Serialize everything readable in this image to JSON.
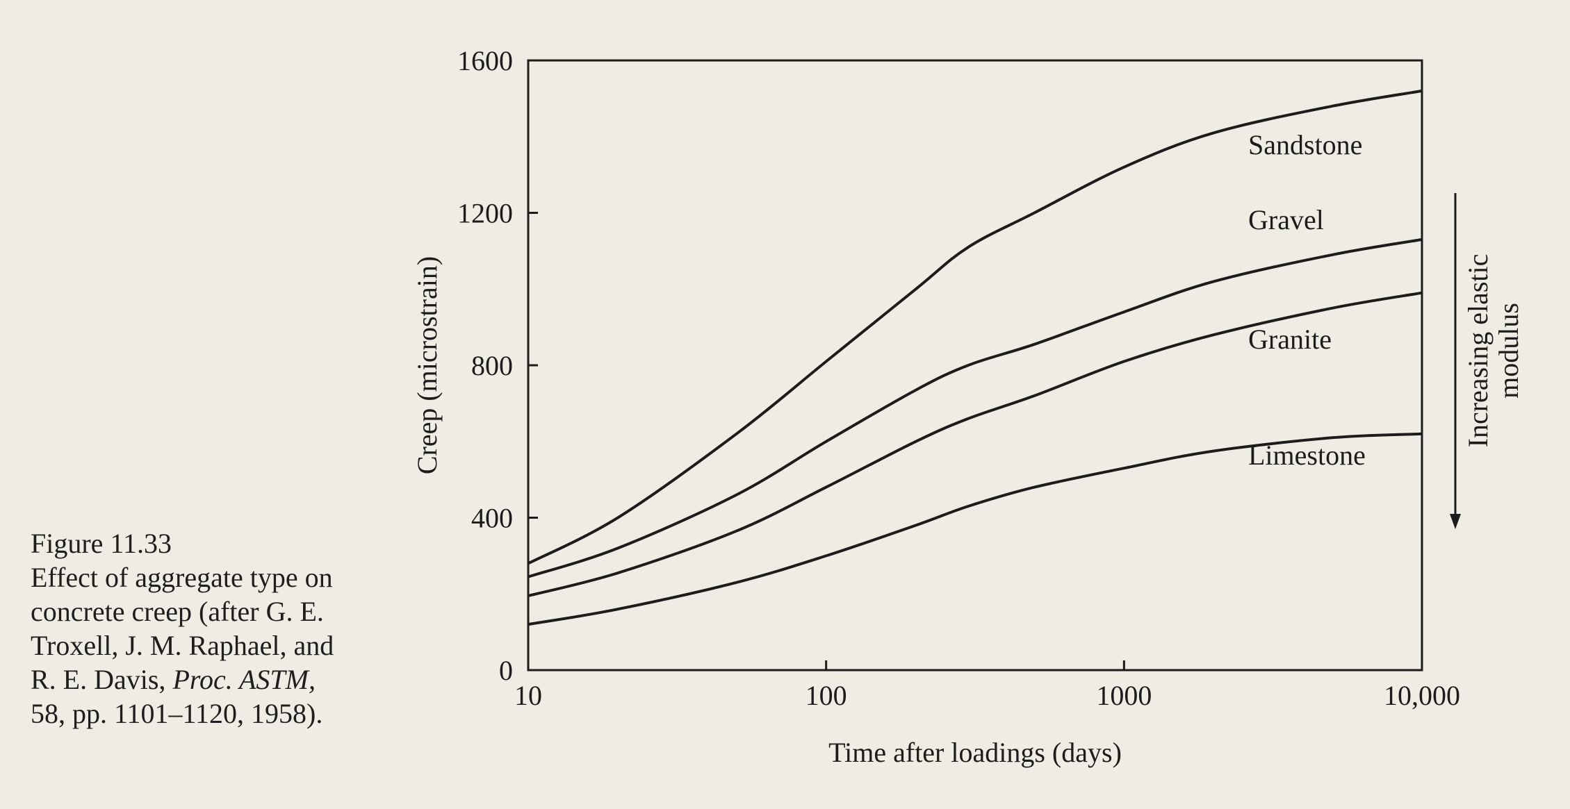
{
  "caption": {
    "line1": "Figure 11.33",
    "line2": "Effect of aggregate type on",
    "line3": "concrete creep (after G. E.",
    "line4": "Troxell, J. M. Raphael, and",
    "line5_pre": "R. E. Davis, ",
    "line5_italic": "Proc. ASTM,",
    "line6": "58, pp. 1101–1120, 1958)."
  },
  "annotation": {
    "line1": "Increasing elastic",
    "line2": "modulus"
  },
  "chart_data": {
    "type": "line",
    "title": "",
    "xlabel": "Time after loadings (days)",
    "ylabel": "Creep (microstrain)",
    "xscale": "log",
    "xlim": [
      10,
      10000
    ],
    "ylim": [
      0,
      1600
    ],
    "xticks": [
      10,
      100,
      1000,
      10000
    ],
    "xtick_labels": [
      "10",
      "100",
      "1000",
      "10,000"
    ],
    "yticks": [
      0,
      400,
      800,
      1200,
      1600
    ],
    "ytick_labels": [
      "0",
      "400",
      "800",
      "1200",
      "1600"
    ],
    "grid": false,
    "legend": "none",
    "x": [
      10,
      20,
      50,
      100,
      200,
      300,
      500,
      1000,
      2000,
      5000,
      10000
    ],
    "series": [
      {
        "name": "Sandstone",
        "values": [
          280,
          400,
          620,
          810,
          1000,
          1110,
          1200,
          1320,
          1410,
          1480,
          1520
        ]
      },
      {
        "name": "Gravel",
        "values": [
          245,
          320,
          460,
          600,
          735,
          800,
          855,
          940,
          1020,
          1090,
          1130
        ]
      },
      {
        "name": "Granite",
        "values": [
          195,
          255,
          365,
          480,
          600,
          660,
          720,
          810,
          880,
          950,
          990
        ]
      },
      {
        "name": "Limestone",
        "values": [
          120,
          160,
          230,
          300,
          380,
          430,
          480,
          530,
          575,
          610,
          620
        ]
      }
    ]
  }
}
